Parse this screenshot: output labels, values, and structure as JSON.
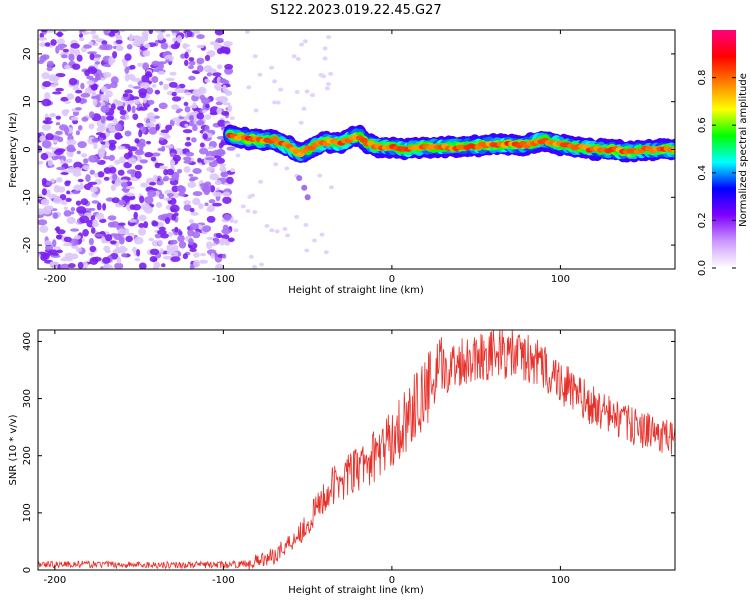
{
  "title": "S122.2023.019.22.45.G27",
  "chart_data": [
    {
      "type": "heatmap",
      "xlabel": "Height of straight line (km)",
      "ylabel": "Frequency (Hz)",
      "xlim": [
        -210,
        168
      ],
      "ylim": [
        -25,
        25
      ],
      "xticks": [
        -200,
        -100,
        0,
        100
      ],
      "yticks": [
        -20,
        -10,
        0,
        10,
        20
      ],
      "colorbar": {
        "label": "Normalized spectral amplitude",
        "range": [
          0,
          1
        ],
        "ticks": [
          0.0,
          0.2,
          0.4,
          0.6,
          0.8
        ],
        "colors": [
          "#ffffff",
          "#cc99ff",
          "#7f00ff",
          "#0000ff",
          "#00ffff",
          "#00ff00",
          "#ffff00",
          "#ff8000",
          "#ff0000",
          "#ff0080"
        ]
      },
      "noise_region_x": [
        -210,
        -95
      ],
      "signal_trace": {
        "x": [
          -96,
          -90,
          -80,
          -70,
          -60,
          -55,
          -50,
          -45,
          -40,
          -30,
          -20,
          -15,
          -10,
          0,
          10,
          20,
          40,
          60,
          80,
          90,
          100,
          110,
          120,
          130,
          140,
          150,
          160,
          168
        ],
        "y": [
          3,
          2.5,
          2,
          2,
          0.5,
          -1,
          0,
          1,
          1.5,
          1.5,
          3,
          1.5,
          0.5,
          0.5,
          0,
          0.5,
          0.5,
          1,
          1,
          2,
          1,
          0.5,
          0,
          0,
          -0.5,
          0,
          0,
          0
        ]
      },
      "grid": false
    },
    {
      "type": "line",
      "xlabel": "Height of straight line (km)",
      "ylabel": "SNR (10 * v/v)",
      "xlim": [
        -210,
        168
      ],
      "ylim": [
        0,
        420
      ],
      "xticks": [
        -200,
        -100,
        0,
        100
      ],
      "yticks": [
        0,
        100,
        200,
        300,
        400
      ],
      "series": [
        {
          "color": "#e8302a",
          "x": [
            -210,
            -180,
            -150,
            -120,
            -100,
            -90,
            -80,
            -70,
            -60,
            -50,
            -40,
            -30,
            -20,
            -10,
            0,
            10,
            20,
            30,
            40,
            50,
            60,
            70,
            80,
            90,
            100,
            110,
            120,
            130,
            140,
            150,
            160,
            168
          ],
          "y": [
            10,
            10,
            9,
            9,
            9,
            10,
            15,
            25,
            50,
            80,
            130,
            160,
            175,
            200,
            230,
            270,
            310,
            345,
            365,
            375,
            378,
            378,
            370,
            355,
            330,
            305,
            285,
            270,
            255,
            245,
            235,
            228
          ]
        }
      ],
      "grid": false
    }
  ]
}
